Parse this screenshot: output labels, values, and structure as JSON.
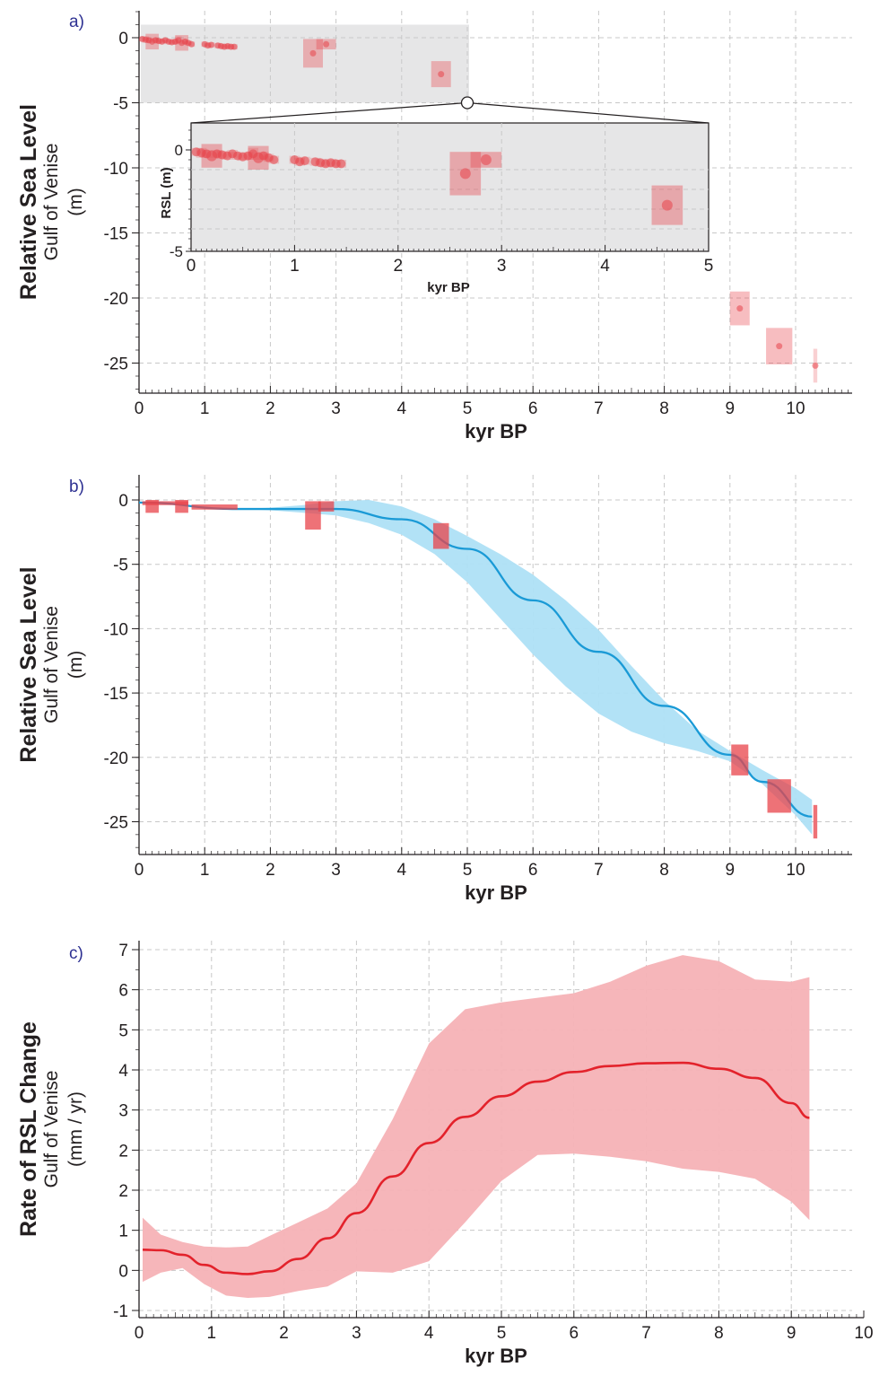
{
  "colors": {
    "data_box": "#e8434a",
    "data_point": "#e8434a",
    "band_b": "#aee0f5",
    "line_b": "#1a9ad6",
    "band_c": "#f5b2b6",
    "line_c": "#e3222b",
    "inset_bg": "#e6e6e7",
    "axis": "#231f20",
    "panel_letter": "#2e3192"
  },
  "chart_data": [
    {
      "id": "a",
      "type": "scatter",
      "panel_label": "a)",
      "xlabel": "kyr BP",
      "ylabel": "Relative Sea Level",
      "ylabel_sub1": "Gulf of Venise",
      "ylabel_sub2": "(m)",
      "xlim": [
        0,
        10.8
      ],
      "ylim": [
        -27.8,
        2
      ],
      "x_ticks": [
        0,
        1,
        2,
        3,
        4,
        5,
        6,
        7,
        8,
        9,
        10
      ],
      "y_ticks": [
        0,
        -5,
        -10,
        -15,
        -20,
        -25
      ],
      "highlight_region": {
        "x": [
          0,
          5
        ],
        "y": [
          -5,
          1
        ]
      },
      "grid": true,
      "points": [
        {
          "x": 0.05,
          "y": -0.1,
          "xerr": 0.05,
          "yerr": 0.2
        },
        {
          "x": 0.1,
          "y": -0.15,
          "xerr": 0.05,
          "yerr": 0.25
        },
        {
          "x": 0.15,
          "y": -0.2,
          "xerr": 0.05,
          "yerr": 0.2
        },
        {
          "x": 0.2,
          "y": -0.3,
          "xerr": 0.1,
          "yerr": 0.6
        },
        {
          "x": 0.25,
          "y": -0.2,
          "xerr": 0.05,
          "yerr": 0.2
        },
        {
          "x": 0.3,
          "y": -0.25,
          "xerr": 0.05,
          "yerr": 0.2
        },
        {
          "x": 0.35,
          "y": -0.3,
          "xerr": 0.05,
          "yerr": 0.2
        },
        {
          "x": 0.4,
          "y": -0.2,
          "xerr": 0.05,
          "yerr": 0.2
        },
        {
          "x": 0.45,
          "y": -0.3,
          "xerr": 0.05,
          "yerr": 0.2
        },
        {
          "x": 0.5,
          "y": -0.35,
          "xerr": 0.05,
          "yerr": 0.2
        },
        {
          "x": 0.55,
          "y": -0.3,
          "xerr": 0.05,
          "yerr": 0.2
        },
        {
          "x": 0.6,
          "y": -0.2,
          "xerr": 0.05,
          "yerr": 0.3
        },
        {
          "x": 0.65,
          "y": -0.4,
          "xerr": 0.1,
          "yerr": 0.6
        },
        {
          "x": 0.7,
          "y": -0.3,
          "xerr": 0.05,
          "yerr": 0.2
        },
        {
          "x": 0.75,
          "y": -0.4,
          "xerr": 0.05,
          "yerr": 0.2
        },
        {
          "x": 0.8,
          "y": -0.5,
          "xerr": 0.05,
          "yerr": 0.2
        },
        {
          "x": 1.0,
          "y": -0.5,
          "xerr": 0.05,
          "yerr": 0.2
        },
        {
          "x": 1.05,
          "y": -0.6,
          "xerr": 0.05,
          "yerr": 0.2
        },
        {
          "x": 1.1,
          "y": -0.55,
          "xerr": 0.05,
          "yerr": 0.2
        },
        {
          "x": 1.2,
          "y": -0.6,
          "xerr": 0.05,
          "yerr": 0.2
        },
        {
          "x": 1.25,
          "y": -0.65,
          "xerr": 0.05,
          "yerr": 0.2
        },
        {
          "x": 1.3,
          "y": -0.7,
          "xerr": 0.05,
          "yerr": 0.2
        },
        {
          "x": 1.35,
          "y": -0.65,
          "xerr": 0.05,
          "yerr": 0.2
        },
        {
          "x": 1.4,
          "y": -0.7,
          "xerr": 0.05,
          "yerr": 0.2
        },
        {
          "x": 1.45,
          "y": -0.7,
          "xerr": 0.05,
          "yerr": 0.2
        },
        {
          "x": 2.65,
          "y": -1.2,
          "xerr": 0.15,
          "yerr": 1.1
        },
        {
          "x": 2.85,
          "y": -0.5,
          "xerr": 0.15,
          "yerr": 0.4
        },
        {
          "x": 4.6,
          "y": -2.8,
          "xerr": 0.15,
          "yerr": 1.0
        },
        {
          "x": 9.15,
          "y": -20.8,
          "xerr": 0.15,
          "yerr": 1.3
        },
        {
          "x": 9.75,
          "y": -23.7,
          "xerr": 0.2,
          "yerr": 1.4
        },
        {
          "x": 10.3,
          "y": -25.2,
          "xerr": 0.03,
          "yerr": 1.3
        }
      ],
      "inset": {
        "xlabel": "kyr BP",
        "ylabel": "RSL (m)",
        "xlim": [
          0,
          5
        ],
        "ylim": [
          -5,
          1
        ],
        "x_ticks": [
          0,
          1,
          2,
          3,
          4,
          5
        ],
        "y_ticks": [
          0,
          -5
        ]
      }
    },
    {
      "id": "b",
      "type": "line",
      "panel_label": "b)",
      "xlabel": "kyr BP",
      "ylabel": "Relative Sea Level",
      "ylabel_sub1": "Gulf of Venise",
      "ylabel_sub2": "(m)",
      "xlim": [
        0,
        10.8
      ],
      "ylim": [
        -27.8,
        2
      ],
      "x_ticks": [
        0,
        1,
        2,
        3,
        4,
        5,
        6,
        7,
        8,
        9,
        10
      ],
      "y_ticks": [
        0,
        -5,
        -10,
        -15,
        -20,
        -25
      ],
      "grid": true,
      "mean_line": {
        "x": [
          0.0,
          1.5,
          3.0,
          4.0,
          5.0,
          6.0,
          7.0,
          8.0,
          9.0,
          9.5,
          10.25
        ],
        "y": [
          -0.2,
          -0.7,
          -0.7,
          -1.5,
          -3.8,
          -7.8,
          -11.8,
          -16.0,
          -19.8,
          -21.9,
          -24.6
        ]
      },
      "band": {
        "x": [
          1.5,
          2.0,
          2.5,
          3.0,
          3.5,
          4.0,
          4.5,
          5.0,
          5.5,
          6.0,
          6.5,
          7.0,
          7.5,
          8.0,
          8.5,
          9.0,
          9.5,
          10.0,
          10.25
        ],
        "upper": [
          -0.7,
          -0.6,
          -0.4,
          -0.1,
          0.0,
          -0.5,
          -1.5,
          -2.8,
          -4.2,
          -5.8,
          -7.8,
          -10.1,
          -12.9,
          -15.6,
          -17.9,
          -19.5,
          -21.0,
          -22.4,
          -23.3
        ],
        "lower": [
          -0.7,
          -0.8,
          -1.0,
          -1.2,
          -1.8,
          -2.7,
          -4.2,
          -6.4,
          -9.2,
          -12.0,
          -14.5,
          -16.6,
          -18.0,
          -18.9,
          -19.5,
          -20.3,
          -22.1,
          -24.5,
          -26.0
        ]
      },
      "boxes": [
        {
          "x": 0.2,
          "y": -0.5,
          "xerr": 0.1,
          "yerr": 0.5
        },
        {
          "x": 0.65,
          "y": -0.5,
          "xerr": 0.1,
          "yerr": 0.5
        },
        {
          "x": 0.4,
          "y": -0.25,
          "xerr": 0.35,
          "yerr": 0.15
        },
        {
          "x": 1.15,
          "y": -0.55,
          "xerr": 0.35,
          "yerr": 0.2
        },
        {
          "x": 2.65,
          "y": -1.2,
          "xerr": 0.12,
          "yerr": 1.1
        },
        {
          "x": 2.85,
          "y": -0.5,
          "xerr": 0.12,
          "yerr": 0.4
        },
        {
          "x": 4.6,
          "y": -2.8,
          "xerr": 0.12,
          "yerr": 1.0
        },
        {
          "x": 9.15,
          "y": -20.2,
          "xerr": 0.13,
          "yerr": 1.2
        },
        {
          "x": 9.75,
          "y": -23.0,
          "xerr": 0.18,
          "yerr": 1.3
        },
        {
          "x": 10.3,
          "y": -25.0,
          "xerr": 0.03,
          "yerr": 1.3
        }
      ]
    },
    {
      "id": "c",
      "type": "line",
      "panel_label": "c)",
      "xlabel": "kyr BP",
      "ylabel": "Rate of RSL Change",
      "ylabel_sub1": "Gulf of Venise",
      "ylabel_sub2": "(mm / yr)",
      "xlim": [
        0,
        10.8
      ],
      "x_ticks": [
        0,
        1,
        2,
        3,
        4,
        5,
        6,
        7,
        8,
        9,
        10
      ],
      "y_ticks": [
        {
          "label": "7"
        },
        {
          "label": "6"
        },
        {
          "label": "5"
        },
        {
          "label": "4"
        },
        {
          "label": "3"
        },
        {
          "label": "2"
        },
        {
          "label": "2"
        },
        {
          "label": "1"
        },
        {
          "label": "0"
        },
        {
          "label": "-1"
        }
      ],
      "grid": true,
      "mean_line": {
        "x": [
          0.05,
          0.3,
          0.6,
          0.9,
          1.2,
          1.5,
          1.8,
          2.2,
          2.6,
          3.0,
          3.5,
          4.0,
          4.5,
          5.0,
          5.5,
          6.0,
          6.5,
          7.0,
          7.5,
          8.0,
          8.5,
          9.0,
          9.25
        ],
        "y": [
          0.45,
          0.44,
          0.34,
          0.12,
          -0.05,
          -0.08,
          -0.02,
          0.25,
          0.7,
          1.25,
          2.05,
          2.78,
          3.35,
          3.8,
          4.12,
          4.33,
          4.46,
          4.52,
          4.53,
          4.4,
          4.2,
          3.65,
          3.33
        ]
      },
      "band": {
        "x": [
          0.05,
          0.3,
          0.6,
          0.9,
          1.2,
          1.5,
          1.8,
          2.2,
          2.6,
          3.0,
          3.5,
          4.0,
          4.5,
          5.0,
          5.5,
          6.0,
          6.5,
          7.0,
          7.5,
          8.0,
          8.5,
          9.0,
          9.25
        ],
        "upper": [
          1.15,
          0.78,
          0.62,
          0.52,
          0.5,
          0.52,
          0.75,
          1.05,
          1.35,
          1.9,
          3.3,
          4.95,
          5.7,
          5.85,
          5.95,
          6.05,
          6.3,
          6.65,
          6.88,
          6.75,
          6.35,
          6.3,
          6.4
        ],
        "lower": [
          -0.25,
          -0.05,
          0.05,
          -0.3,
          -0.55,
          -0.6,
          -0.58,
          -0.45,
          -0.35,
          -0.02,
          -0.05,
          0.2,
          1.05,
          1.95,
          2.52,
          2.55,
          2.48,
          2.38,
          2.22,
          2.15,
          2.0,
          1.5,
          1.1
        ]
      }
    }
  ]
}
